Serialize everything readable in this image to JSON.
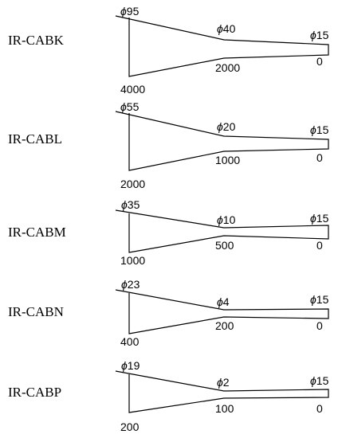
{
  "diagrams": [
    {
      "model": "IR-CABK",
      "phi_symbol": "ϕ",
      "diameters": [
        "95",
        "40",
        "15"
      ],
      "stations": [
        "4000",
        "2000",
        "0"
      ]
    },
    {
      "model": "IR-CABL",
      "phi_symbol": "ϕ",
      "diameters": [
        "55",
        "20",
        "15"
      ],
      "stations": [
        "2000",
        "1000",
        "0"
      ]
    },
    {
      "model": "IR-CABM",
      "phi_symbol": "ϕ",
      "diameters": [
        "35",
        "10",
        "15"
      ],
      "stations": [
        "1000",
        "500",
        "0"
      ]
    },
    {
      "model": "IR-CABN",
      "phi_symbol": "ϕ",
      "diameters": [
        "23",
        "4",
        "15"
      ],
      "stations": [
        "400",
        "200",
        "0"
      ]
    },
    {
      "model": "IR-CABP",
      "phi_symbol": "ϕ",
      "diameters": [
        "19",
        "2",
        "15"
      ],
      "stations": [
        "200",
        "100",
        "0"
      ]
    }
  ]
}
